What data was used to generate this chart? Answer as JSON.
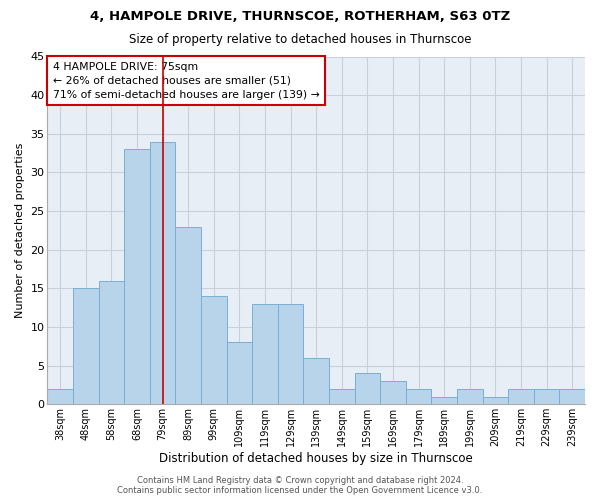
{
  "title": "4, HAMPOLE DRIVE, THURNSCOE, ROTHERHAM, S63 0TZ",
  "subtitle": "Size of property relative to detached houses in Thurnscoe",
  "xlabel": "Distribution of detached houses by size in Thurnscoe",
  "ylabel": "Number of detached properties",
  "categories": [
    "38sqm",
    "48sqm",
    "58sqm",
    "68sqm",
    "79sqm",
    "89sqm",
    "99sqm",
    "109sqm",
    "119sqm",
    "129sqm",
    "139sqm",
    "149sqm",
    "159sqm",
    "169sqm",
    "179sqm",
    "189sqm",
    "199sqm",
    "209sqm",
    "219sqm",
    "229sqm",
    "239sqm"
  ],
  "values": [
    2,
    15,
    16,
    33,
    34,
    23,
    14,
    8,
    13,
    13,
    6,
    2,
    4,
    3,
    2,
    1,
    2,
    1,
    2,
    2,
    2
  ],
  "bar_color": "#b8d4ea",
  "bar_edge_color": "#7aaed4",
  "vline_x": 4,
  "vline_color": "#cc0000",
  "annotation_text": "4 HAMPOLE DRIVE: 75sqm\n← 26% of detached houses are smaller (51)\n71% of semi-detached houses are larger (139) →",
  "annotation_box_color": "#cc0000",
  "ylim": [
    0,
    45
  ],
  "yticks": [
    0,
    5,
    10,
    15,
    20,
    25,
    30,
    35,
    40,
    45
  ],
  "grid_color": "#c8d0dc",
  "background_color": "#e8eef6",
  "footer_line1": "Contains HM Land Registry data © Crown copyright and database right 2024.",
  "footer_line2": "Contains public sector information licensed under the Open Government Licence v3.0."
}
